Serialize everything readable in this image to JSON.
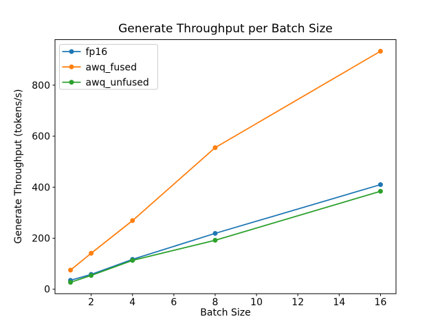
{
  "chart_data": {
    "type": "line",
    "title": "Generate Throughput per Batch Size",
    "xlabel": "Batch Size",
    "ylabel": "Generate Throughput (tokens/s)",
    "x": [
      1,
      2,
      4,
      8,
      16
    ],
    "series": [
      {
        "name": "fp16",
        "color": "#1f77b4",
        "values": [
          35,
          58,
          117,
          219,
          410
        ]
      },
      {
        "name": "awq_fused",
        "color": "#ff7f0e",
        "values": [
          75,
          141,
          269,
          555,
          933
        ]
      },
      {
        "name": "awq_unfused",
        "color": "#2ca02c",
        "values": [
          27,
          54,
          113,
          192,
          384
        ]
      }
    ],
    "xlim": [
      0.25,
      16.75
    ],
    "ylim": [
      -17.5,
      978.5
    ],
    "xticks": [
      2,
      4,
      6,
      8,
      10,
      12,
      14,
      16
    ],
    "yticks": [
      0,
      200,
      400,
      600,
      800
    ],
    "legend_position": "upper left",
    "grid": false,
    "axis_color": "#000000",
    "background_color": "#ffffff",
    "legend_border_color": "#cccccc"
  }
}
